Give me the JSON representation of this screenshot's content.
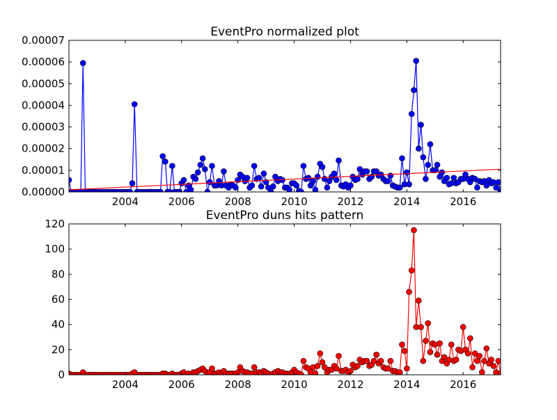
{
  "chart_data": [
    {
      "type": "line",
      "title": "EventPro normalized plot",
      "color": "#0000ff",
      "x": [
        2002.0,
        2002.08,
        2002.17,
        2002.25,
        2002.33,
        2002.42,
        2002.5,
        2002.58,
        2002.67,
        2002.75,
        2002.83,
        2002.92,
        2003.0,
        2003.08,
        2003.17,
        2003.25,
        2003.33,
        2003.42,
        2003.5,
        2003.58,
        2003.67,
        2003.75,
        2003.83,
        2003.92,
        2004.0,
        2004.08,
        2004.17,
        2004.25,
        2004.33,
        2004.42,
        2004.5,
        2004.58,
        2004.67,
        2004.75,
        2004.83,
        2004.92,
        2005.0,
        2005.08,
        2005.17,
        2005.25,
        2005.33,
        2005.42,
        2005.5,
        2005.58,
        2005.67,
        2005.75,
        2005.83,
        2005.92,
        2006.0,
        2006.08,
        2006.17,
        2006.25,
        2006.33,
        2006.42,
        2006.5,
        2006.58,
        2006.67,
        2006.75,
        2006.83,
        2006.92,
        2007.0,
        2007.08,
        2007.17,
        2007.25,
        2007.33,
        2007.42,
        2007.5,
        2007.58,
        2007.67,
        2007.75,
        2007.83,
        2007.92,
        2008.0,
        2008.08,
        2008.17,
        2008.25,
        2008.33,
        2008.42,
        2008.5,
        2008.58,
        2008.67,
        2008.75,
        2008.83,
        2008.92,
        2009.0,
        2009.08,
        2009.17,
        2009.25,
        2009.33,
        2009.42,
        2009.5,
        2009.58,
        2009.67,
        2009.75,
        2009.83,
        2009.92,
        2010.0,
        2010.08,
        2010.17,
        2010.25,
        2010.33,
        2010.42,
        2010.5,
        2010.58,
        2010.67,
        2010.75,
        2010.83,
        2010.92,
        2011.0,
        2011.08,
        2011.17,
        2011.25,
        2011.33,
        2011.42,
        2011.5,
        2011.58,
        2011.67,
        2011.75,
        2011.83,
        2011.92,
        2012.0,
        2012.08,
        2012.17,
        2012.25,
        2012.33,
        2012.42,
        2012.5,
        2012.58,
        2012.67,
        2012.75,
        2012.83,
        2012.92,
        2013.0,
        2013.08,
        2013.17,
        2013.25,
        2013.33,
        2013.42,
        2013.5,
        2013.58,
        2013.67,
        2013.75,
        2013.83,
        2013.92,
        2014.0,
        2014.08,
        2014.17,
        2014.25,
        2014.33,
        2014.42,
        2014.5,
        2014.58,
        2014.67,
        2014.75,
        2014.83,
        2014.92,
        2015.0,
        2015.08,
        2015.17,
        2015.25,
        2015.33,
        2015.42,
        2015.5,
        2015.58,
        2015.67,
        2015.75,
        2015.83,
        2015.92,
        2016.0,
        2016.08,
        2016.17,
        2016.25,
        2016.33,
        2016.42,
        2016.5,
        2016.58,
        2016.67,
        2016.75,
        2016.83,
        2016.92,
        2017.0,
        2017.08,
        2017.17,
        2017.25,
        2017.33
      ],
      "values": [
        5.5e-06,
        0,
        0,
        0,
        0,
        0,
        5.95e-05,
        0,
        0,
        0,
        0,
        0,
        0,
        0,
        0,
        0,
        0,
        0,
        0,
        0,
        0,
        0,
        0,
        0,
        0,
        0,
        0,
        4e-06,
        4.05e-05,
        0,
        0,
        0,
        0,
        0,
        0,
        0,
        0,
        0,
        0,
        0,
        1.65e-05,
        1.4e-05,
        0,
        0,
        1.2e-05,
        0,
        0,
        0,
        4e-06,
        5.5e-06,
        0,
        3e-06,
        1e-06,
        7e-06,
        6e-06,
        9e-06,
        1.25e-05,
        1.55e-05,
        1.05e-05,
        0,
        4.5e-06,
        1.2e-05,
        3e-06,
        3e-06,
        5e-06,
        3e-06,
        9.5e-06,
        3e-06,
        2e-06,
        3.5e-06,
        3e-06,
        2e-06,
        5.5e-06,
        8e-06,
        7e-06,
        5e-06,
        6.5e-06,
        2e-06,
        3e-06,
        1.2e-05,
        6e-06,
        6.5e-06,
        2.5e-06,
        8.5e-06,
        4.5e-06,
        2e-06,
        0,
        2.5e-06,
        7e-06,
        5e-06,
        6e-06,
        5.5e-06,
        2e-06,
        2e-06,
        1e-06,
        4e-06,
        4e-06,
        3e-06,
        5e-07,
        0,
        1.2e-05,
        6e-06,
        6.5e-06,
        3e-06,
        5e-06,
        1e-06,
        7e-06,
        1.3e-05,
        1.15e-05,
        6e-06,
        2e-06,
        5e-06,
        7e-06,
        8.5e-06,
        5.5e-06,
        1.45e-05,
        3e-06,
        2.5e-06,
        3.5e-06,
        2e-06,
        3e-06,
        7e-06,
        5.5e-06,
        6e-06,
        1.05e-05,
        8e-06,
        9.5e-06,
        9.5e-06,
        6e-06,
        7e-06,
        9.5e-06,
        9.5e-06,
        7.5e-06,
        8e-06,
        6e-06,
        5e-06,
        5e-06,
        7.5e-06,
        3e-06,
        2.5e-06,
        2e-06,
        2e-06,
        1.55e-05,
        3.5e-06,
        9e-06,
        3.5e-06,
        3.6e-05,
        4.7e-05,
        6.05e-05,
        2e-05,
        3.1e-05,
        1.6e-05,
        6e-06,
        1.25e-05,
        2.2e-05,
        1e-05,
        1e-05,
        1.25e-05,
        7e-06,
        9e-06,
        5e-06,
        6.5e-06,
        3.5e-06,
        4e-06,
        6.5e-06,
        4e-06,
        4.5e-06,
        6e-06,
        6e-06,
        8e-06,
        6e-06,
        4.5e-06,
        6.5e-06,
        6e-06,
        2e-06,
        5e-06,
        4.5e-06,
        5e-06,
        3e-06,
        5.5e-06,
        4e-06,
        4.5e-06,
        2e-06,
        4.5e-06,
        5e-07
      ],
      "trend": {
        "x": [
          2002.0,
          2017.33
        ],
        "values": [
          1e-06,
          1.05e-05
        ],
        "color": "#ff0000"
      },
      "xlim": [
        2002.0,
        2017.33
      ],
      "xticks": [
        2004,
        2006,
        2008,
        2010,
        2012,
        2014,
        2016
      ],
      "ylim": [
        0,
        7e-05
      ],
      "yticks": [
        {
          "value": 0,
          "label": "0.00000"
        },
        {
          "value": 1e-05,
          "label": "0.00001"
        },
        {
          "value": 2e-05,
          "label": "0.00002"
        },
        {
          "value": 3e-05,
          "label": "0.00003"
        },
        {
          "value": 4e-05,
          "label": "0.00004"
        },
        {
          "value": 5e-05,
          "label": "0.00005"
        },
        {
          "value": 6e-05,
          "label": "0.00006"
        },
        {
          "value": 7e-05,
          "label": "0.00007"
        }
      ]
    },
    {
      "type": "line",
      "title": "EventPro duns hits pattern",
      "color": "#ff0000",
      "x": [
        2002.0,
        2002.08,
        2002.17,
        2002.25,
        2002.33,
        2002.42,
        2002.5,
        2002.58,
        2002.67,
        2002.75,
        2002.83,
        2002.92,
        2003.0,
        2003.08,
        2003.17,
        2003.25,
        2003.33,
        2003.42,
        2003.5,
        2003.58,
        2003.67,
        2003.75,
        2003.83,
        2003.92,
        2004.0,
        2004.08,
        2004.17,
        2004.25,
        2004.33,
        2004.42,
        2004.5,
        2004.58,
        2004.67,
        2004.75,
        2004.83,
        2004.92,
        2005.0,
        2005.08,
        2005.17,
        2005.25,
        2005.33,
        2005.42,
        2005.5,
        2005.58,
        2005.67,
        2005.75,
        2005.83,
        2005.92,
        2006.0,
        2006.08,
        2006.17,
        2006.25,
        2006.33,
        2006.42,
        2006.5,
        2006.58,
        2006.67,
        2006.75,
        2006.83,
        2006.92,
        2007.0,
        2007.08,
        2007.17,
        2007.25,
        2007.33,
        2007.42,
        2007.5,
        2007.58,
        2007.67,
        2007.75,
        2007.83,
        2007.92,
        2008.0,
        2008.08,
        2008.17,
        2008.25,
        2008.33,
        2008.42,
        2008.5,
        2008.58,
        2008.67,
        2008.75,
        2008.83,
        2008.92,
        2009.0,
        2009.08,
        2009.17,
        2009.25,
        2009.33,
        2009.42,
        2009.5,
        2009.58,
        2009.67,
        2009.75,
        2009.83,
        2009.92,
        2010.0,
        2010.08,
        2010.17,
        2010.25,
        2010.33,
        2010.42,
        2010.5,
        2010.58,
        2010.67,
        2010.75,
        2010.83,
        2010.92,
        2011.0,
        2011.08,
        2011.17,
        2011.25,
        2011.33,
        2011.42,
        2011.5,
        2011.58,
        2011.67,
        2011.75,
        2011.83,
        2011.92,
        2012.0,
        2012.08,
        2012.17,
        2012.25,
        2012.33,
        2012.42,
        2012.5,
        2012.58,
        2012.67,
        2012.75,
        2012.83,
        2012.92,
        2013.0,
        2013.08,
        2013.17,
        2013.25,
        2013.33,
        2013.42,
        2013.5,
        2013.58,
        2013.67,
        2013.75,
        2013.83,
        2013.92,
        2014.0,
        2014.08,
        2014.17,
        2014.25,
        2014.33,
        2014.42,
        2014.5,
        2014.58,
        2014.67,
        2014.75,
        2014.83,
        2014.92,
        2015.0,
        2015.08,
        2015.17,
        2015.25,
        2015.33,
        2015.42,
        2015.5,
        2015.58,
        2015.67,
        2015.75,
        2015.83,
        2015.92,
        2016.0,
        2016.08,
        2016.17,
        2016.25,
        2016.33,
        2016.42,
        2016.5,
        2016.58,
        2016.67,
        2016.75,
        2016.83,
        2016.92,
        2017.0,
        2017.08,
        2017.17,
        2017.25,
        2017.33
      ],
      "values": [
        1,
        0,
        0,
        0,
        0,
        0,
        2,
        0,
        0,
        0,
        0,
        0,
        0,
        0,
        0,
        0,
        0,
        0,
        0,
        0,
        0,
        0,
        0,
        0,
        0,
        0,
        0,
        1,
        2,
        0,
        0,
        0,
        0,
        0,
        0,
        0,
        0,
        0,
        0,
        0,
        1,
        1,
        0,
        0,
        1,
        0,
        0,
        0,
        1,
        2,
        0,
        1,
        0,
        2,
        2,
        3,
        4,
        5,
        3,
        1,
        2,
        5,
        1,
        1,
        2,
        1,
        3,
        1,
        1,
        1,
        1,
        1,
        2,
        6,
        3,
        2,
        2,
        1,
        1,
        6,
        2,
        2,
        1,
        3,
        2,
        1,
        0,
        1,
        2,
        3,
        2,
        2,
        1,
        1,
        0,
        2,
        4,
        2,
        1,
        0,
        11,
        6,
        5,
        2,
        6,
        1,
        7,
        17,
        10,
        6,
        2,
        4,
        4,
        7,
        5,
        15,
        3,
        3,
        4,
        2,
        3,
        8,
        6,
        7,
        12,
        10,
        11,
        11,
        7,
        8,
        11,
        16,
        9,
        11,
        6,
        5,
        5,
        11,
        3,
        3,
        2,
        2,
        24,
        19,
        5,
        66,
        83,
        115,
        38,
        59,
        38,
        11,
        27,
        41,
        18,
        25,
        24,
        16,
        25,
        11,
        14,
        9,
        12,
        24,
        11,
        12,
        20,
        19,
        38,
        20,
        17,
        29,
        6,
        17,
        11,
        15,
        2,
        11,
        21,
        9,
        12,
        7,
        2,
        11,
        1
      ],
      "xlim": [
        2002.0,
        2017.33
      ],
      "xticks": [
        2004,
        2006,
        2008,
        2010,
        2012,
        2014,
        2016
      ],
      "ylim": [
        0,
        120
      ],
      "yticks": [
        0,
        20,
        40,
        60,
        80,
        100,
        120
      ]
    }
  ]
}
